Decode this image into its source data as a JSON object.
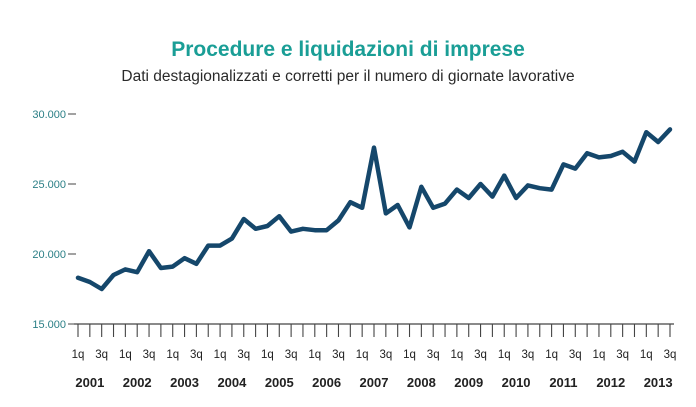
{
  "colors": {
    "title": "#1a9e96",
    "line": "#15476b",
    "axis": "#444444",
    "ytick_text": "#2b7f86"
  },
  "chart_data": {
    "type": "line",
    "title": "Procedure e liquidazioni di imprese",
    "subtitle": "Dati destagionalizzati e corretti per il numero di giornate lavorative",
    "xlabel": "",
    "ylabel": "",
    "ylim": [
      15000,
      30000
    ],
    "yticks": [
      15000,
      20000,
      25000,
      30000
    ],
    "ytick_labels": [
      "15.000",
      "20.000",
      "25.000",
      "30.000"
    ],
    "years": [
      "2001",
      "2002",
      "2003",
      "2004",
      "2005",
      "2006",
      "2007",
      "2008",
      "2009",
      "2010",
      "2011",
      "2012",
      "2013"
    ],
    "quarter_labels": [
      "1q",
      "3q"
    ],
    "x": [
      "2001 1q",
      "2001 2q",
      "2001 3q",
      "2001 4q",
      "2002 1q",
      "2002 2q",
      "2002 3q",
      "2002 4q",
      "2003 1q",
      "2003 2q",
      "2003 3q",
      "2003 4q",
      "2004 1q",
      "2004 2q",
      "2004 3q",
      "2004 4q",
      "2005 1q",
      "2005 2q",
      "2005 3q",
      "2005 4q",
      "2006 1q",
      "2006 2q",
      "2006 3q",
      "2006 4q",
      "2007 1q",
      "2007 2q",
      "2007 3q",
      "2007 4q",
      "2008 1q",
      "2008 2q",
      "2008 3q",
      "2008 4q",
      "2009 1q",
      "2009 2q",
      "2009 3q",
      "2009 4q",
      "2010 1q",
      "2010 2q",
      "2010 3q",
      "2010 4q",
      "2011 1q",
      "2011 2q",
      "2011 3q",
      "2011 4q",
      "2012 1q",
      "2012 2q",
      "2012 3q",
      "2012 4q",
      "2013 1q",
      "2013 2q",
      "2013 3q"
    ],
    "series": [
      {
        "values": [
          18300,
          18000,
          17500,
          18500,
          18900,
          18700,
          20200,
          19000,
          19100,
          19700,
          19300,
          20600,
          20600,
          21100,
          22500,
          21800,
          22000,
          22700,
          21600,
          21800,
          21700,
          21700,
          22400,
          23700,
          23300,
          27600,
          22900,
          23500,
          21900,
          24800,
          23300,
          23600,
          24600,
          24000,
          25000,
          24100,
          25600,
          24000,
          24900,
          24700,
          24600,
          26400,
          26100,
          27200,
          26900,
          27000,
          27300,
          26600,
          28700,
          28000,
          28900
        ]
      }
    ],
    "grid": false,
    "legend": "none"
  }
}
